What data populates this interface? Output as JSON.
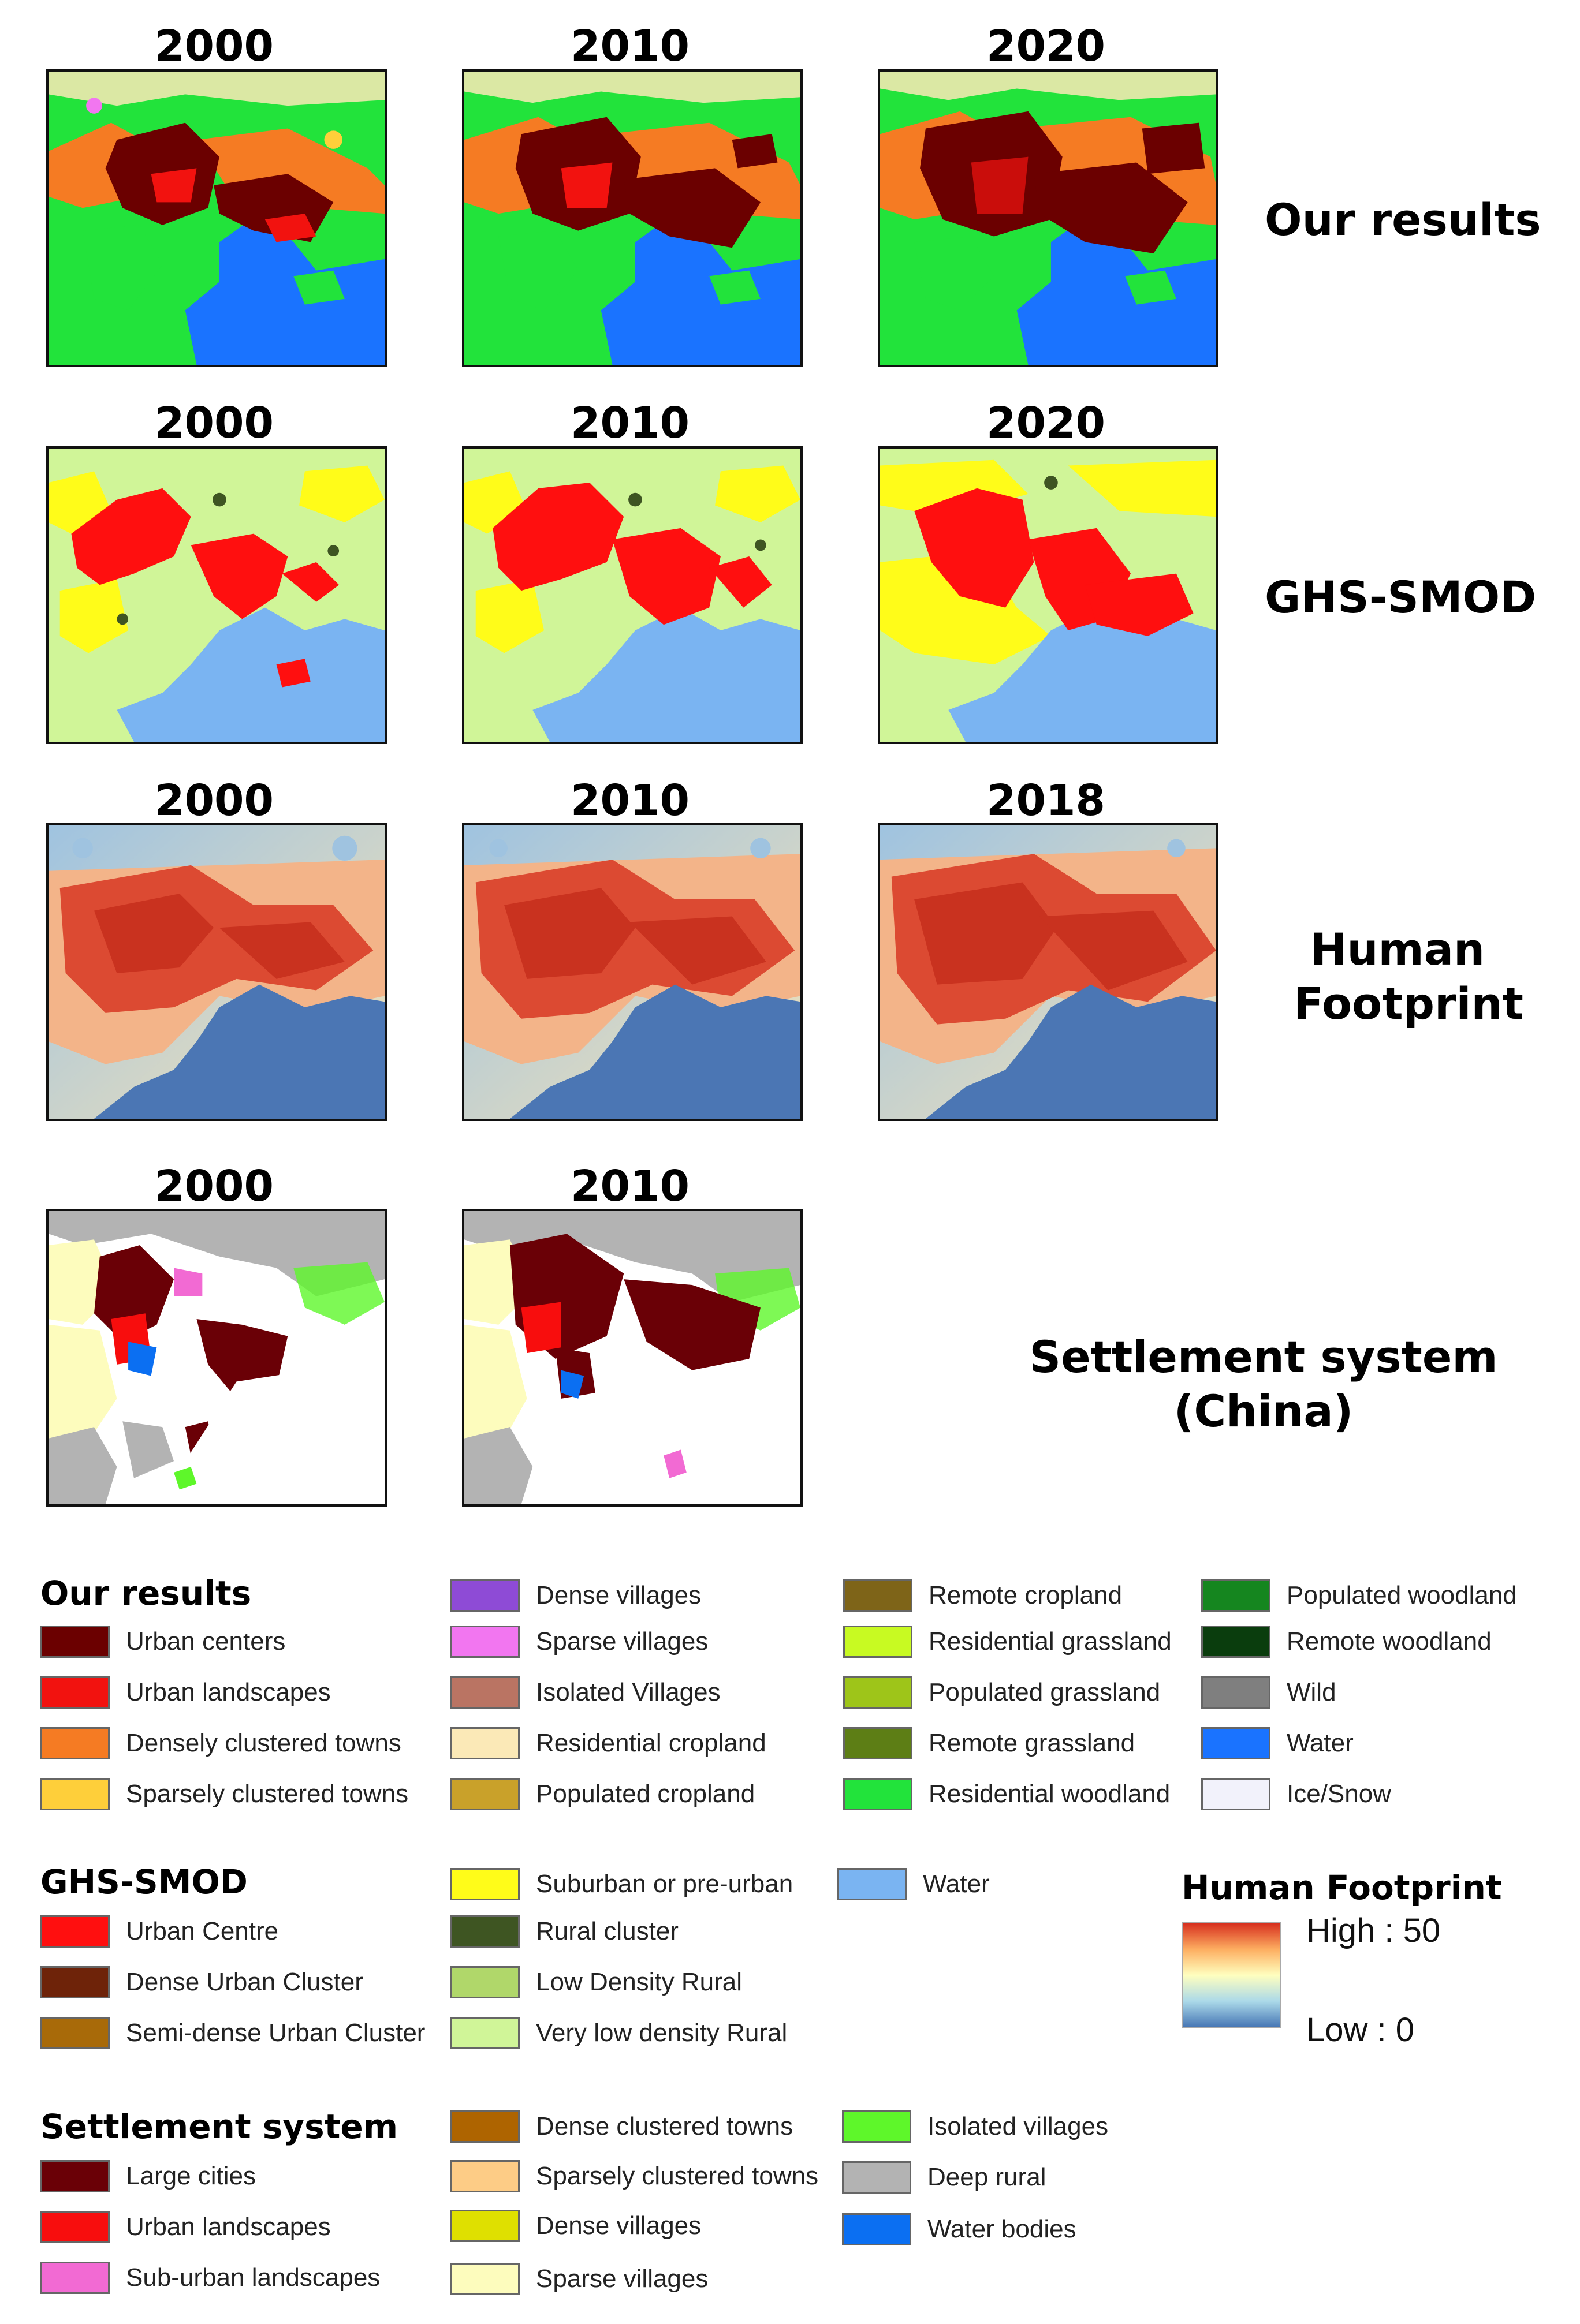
{
  "rows": [
    {
      "label": "Our results",
      "years": [
        "2000",
        "2010",
        "2020"
      ]
    },
    {
      "label": "GHS-SMOD",
      "years": [
        "2000",
        "2010",
        "2020"
      ]
    },
    {
      "label": "Human Footprint",
      "years": [
        "2000",
        "2010",
        "2018"
      ]
    },
    {
      "label": "Settlement system (China)",
      "years": [
        "2000",
        "2010"
      ]
    }
  ],
  "legend_our": {
    "title": "Our results",
    "items": [
      {
        "label": "Urban centers",
        "color": "#6b0000"
      },
      {
        "label": "Urban landscapes",
        "color": "#f2120f"
      },
      {
        "label": "Densely clustered towns",
        "color": "#f57b23"
      },
      {
        "label": "Sparsely clustered towns",
        "color": "#fecf3a"
      },
      {
        "label": "Dense villages",
        "color": "#8e4bd6"
      },
      {
        "label": "Sparse villages",
        "color": "#f276f0"
      },
      {
        "label": "Isolated Villages",
        "color": "#ba7463"
      },
      {
        "label": "Residential cropland",
        "color": "#fbe9b7"
      },
      {
        "label": "Populated cropland",
        "color": "#c9a12a"
      },
      {
        "label": "Remote cropland",
        "color": "#7e6418"
      },
      {
        "label": "Residential grassland",
        "color": "#c8fa22"
      },
      {
        "label": "Populated grassland",
        "color": "#9ec519"
      },
      {
        "label": "Remote grassland",
        "color": "#5d7e15"
      },
      {
        "label": "Residential woodland",
        "color": "#22e33b"
      },
      {
        "label": "Populated woodland",
        "color": "#15861f"
      },
      {
        "label": "Remote woodland",
        "color": "#0a3d0d"
      },
      {
        "label": "Wild",
        "color": "#7f7f7f"
      },
      {
        "label": "Water",
        "color": "#1a73ff"
      },
      {
        "label": "Ice/Snow",
        "color": "#f2f2fb"
      }
    ]
  },
  "legend_ghs": {
    "title": "GHS-SMOD",
    "items": [
      {
        "label": "Urban Centre",
        "color": "#ff0f0f"
      },
      {
        "label": "Dense Urban Cluster",
        "color": "#6e2309"
      },
      {
        "label": "Semi-dense Urban Cluster",
        "color": "#a86a09"
      },
      {
        "label": "Suburban or pre-urban",
        "color": "#fffc19"
      },
      {
        "label": "Rural cluster",
        "color": "#3e5522"
      },
      {
        "label": "Low Density Rural",
        "color": "#b0d76a"
      },
      {
        "label": "Very low density Rural",
        "color": "#d0f598"
      },
      {
        "label": "Water",
        "color": "#7ab4f2"
      }
    ]
  },
  "legend_hf": {
    "title": "Human Footprint",
    "high": "High : 50",
    "low": "Low : 0"
  },
  "legend_settle": {
    "title": "Settlement system",
    "items": [
      {
        "label": "Large cities",
        "color": "#6a0006"
      },
      {
        "label": "Urban landscapes",
        "color": "#f80d0d"
      },
      {
        "label": "Sub-urban landscapes",
        "color": "#f26ad3"
      },
      {
        "label": "Dense clustered towns",
        "color": "#ae6400"
      },
      {
        "label": "Sparsely clustered towns",
        "color": "#fdcc86"
      },
      {
        "label": "Dense villages",
        "color": "#dfe000"
      },
      {
        "label": "Sparse villages",
        "color": "#fdfcbd"
      },
      {
        "label": "Isolated villages",
        "color": "#5ef72a"
      },
      {
        "label": "Deep rural",
        "color": "#b3b3b3"
      },
      {
        "label": "Water bodies",
        "color": "#0b6ff2"
      }
    ]
  }
}
